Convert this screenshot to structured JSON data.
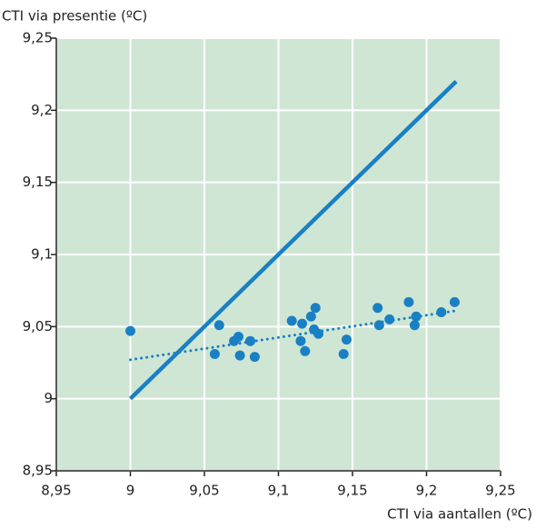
{
  "chart_data": {
    "type": "scatter",
    "xlabel": "CTI via aantallen (ºC)",
    "ylabel": "CTI via presentie (ºC)",
    "xlim": [
      8.95,
      9.25
    ],
    "ylim": [
      8.95,
      9.25
    ],
    "xticks": [
      {
        "value": 8.95,
        "label": "8,95"
      },
      9,
      {
        "value": 9.05,
        "label": "9,05"
      },
      {
        "value": 9.1,
        "label": "9,1"
      },
      {
        "value": 9.15,
        "label": "9,15"
      },
      {
        "value": 9.2,
        "label": "9,2"
      },
      {
        "value": 9.25,
        "label": "9,25"
      }
    ],
    "yticks": [
      {
        "value": 8.95,
        "label": "8,95"
      },
      9,
      {
        "value": 9.05,
        "label": "9,05"
      },
      {
        "value": 9.1,
        "label": "9,1"
      },
      {
        "value": 9.15,
        "label": "9,15"
      },
      {
        "value": 9.2,
        "label": "9,2"
      },
      {
        "value": 9.25,
        "label": "9,25"
      }
    ],
    "grid": true,
    "background": "#cfe6d4",
    "series": [
      {
        "type": "scatter",
        "color": "#1a80c4",
        "x": [
          9.0,
          9.06,
          9.057,
          9.07,
          9.073,
          9.074,
          9.081,
          9.084,
          9.109,
          9.116,
          9.115,
          9.118,
          9.122,
          9.125,
          9.124,
          9.127,
          9.144,
          9.146,
          9.167,
          9.168,
          9.175,
          9.188,
          9.192,
          9.193,
          9.21,
          9.219
        ],
        "values": [
          9.047,
          9.051,
          9.031,
          9.04,
          9.043,
          9.03,
          9.04,
          9.029,
          9.054,
          9.052,
          9.04,
          9.033,
          9.057,
          9.063,
          9.048,
          9.045,
          9.031,
          9.041,
          9.063,
          9.051,
          9.055,
          9.067,
          9.051,
          9.057,
          9.06,
          9.067
        ]
      },
      {
        "type": "line",
        "style": "solid",
        "color": "#1a80c4",
        "x": [
          9.0,
          9.22
        ],
        "values": [
          9.0,
          9.22
        ]
      },
      {
        "type": "line",
        "style": "dotted",
        "color": "#1a80c4",
        "x": [
          9.0,
          9.22
        ],
        "values": [
          9.027,
          9.061
        ]
      }
    ]
  }
}
